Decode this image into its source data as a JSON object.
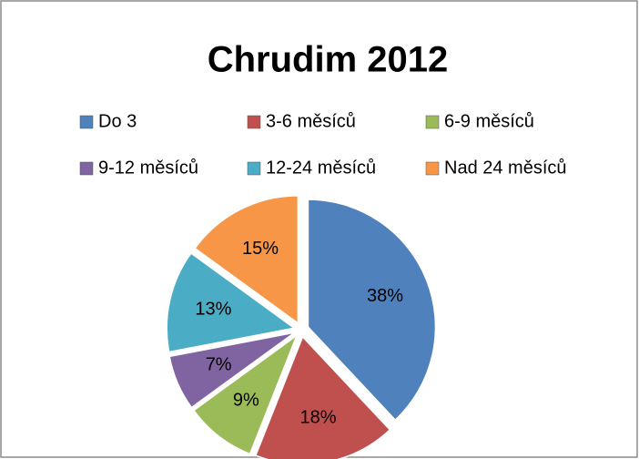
{
  "chart_data": {
    "type": "pie",
    "title": "Chrudim 2012",
    "categories": [
      "Do 3",
      "3-6 měsíců",
      "6-9 měsíců",
      "9-12 měsíců",
      "12-24 měsíců",
      "Nad 24 měsíců"
    ],
    "values": [
      38,
      18,
      9,
      7,
      13,
      15
    ],
    "value_labels": [
      "38%",
      "18%",
      "9%",
      "7%",
      "13%",
      "15%"
    ],
    "colors": [
      "#4f81bd",
      "#c0504d",
      "#9bbb59",
      "#8064a2",
      "#4bacc6",
      "#f79646"
    ],
    "legend": "top"
  }
}
